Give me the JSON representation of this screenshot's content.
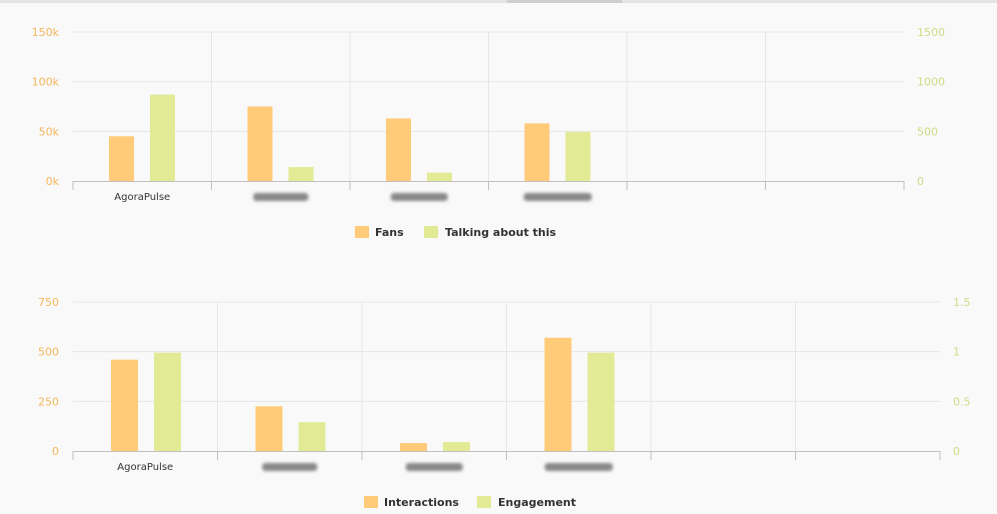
{
  "colors": {
    "series1": "#ffcb78",
    "series2": "#e2ea95",
    "axis_left": "#f5b65c",
    "axis_right": "#cfdc85",
    "grid": "#e6e6e6",
    "axis": "#c0c0c0"
  },
  "chart_data": [
    {
      "type": "bar",
      "categories": [
        "AgoraPulse",
        "",
        "",
        "",
        "",
        ""
      ],
      "blurred_categories": [
        1,
        2,
        3
      ],
      "series": [
        {
          "name": "Fans",
          "axis": "left",
          "values": [
            45000,
            75000,
            63000,
            58000,
            null,
            null
          ]
        },
        {
          "name": "Talking about this",
          "axis": "right",
          "values": [
            870,
            140,
            85,
            495,
            null,
            null
          ]
        }
      ],
      "y_left": {
        "ylim": [
          0,
          150000
        ],
        "ticks": [
          0,
          50000,
          100000,
          150000
        ],
        "tick_labels": [
          "0k",
          "50k",
          "100k",
          "150k"
        ]
      },
      "y_right": {
        "ylim": [
          0,
          1500
        ],
        "ticks": [
          0,
          500,
          1000,
          1500
        ],
        "tick_labels": [
          "0",
          "500",
          "1000",
          "1500"
        ]
      },
      "grid": true,
      "legend": "bottom-center"
    },
    {
      "type": "bar",
      "categories": [
        "AgoraPulse",
        "",
        "",
        "",
        "",
        ""
      ],
      "blurred_categories": [
        1,
        2,
        3
      ],
      "series": [
        {
          "name": "Interactions",
          "axis": "left",
          "values": [
            460,
            225,
            40,
            570,
            null,
            null
          ]
        },
        {
          "name": "Engagement",
          "axis": "right",
          "values": [
            0.99,
            0.29,
            0.09,
            0.99,
            null,
            null
          ]
        }
      ],
      "y_left": {
        "ylim": [
          0,
          750
        ],
        "ticks": [
          0,
          250,
          500,
          750
        ],
        "tick_labels": [
          "0",
          "250",
          "500",
          "750"
        ]
      },
      "y_right": {
        "ylim": [
          0,
          1.5
        ],
        "ticks": [
          0,
          0.5,
          1,
          1.5
        ],
        "tick_labels": [
          "0",
          "0.5",
          "1",
          "1.5"
        ]
      },
      "grid": true,
      "legend": "bottom-center"
    }
  ]
}
